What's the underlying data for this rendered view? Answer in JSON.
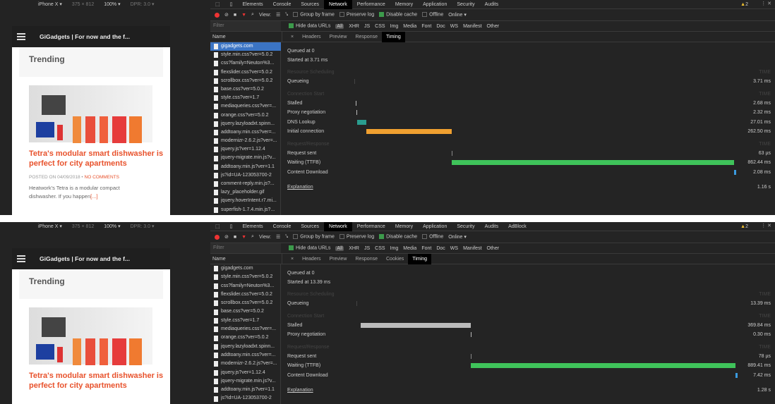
{
  "device_toolbar": {
    "device": "iPhone X ▾",
    "width": "375",
    "x": "×",
    "height": "812",
    "zoom": "100% ▾",
    "dpr": "DPR: 3.0 ▾"
  },
  "page": {
    "site_title": "GiGadgets | For now and the f...",
    "section": "Trending",
    "article_title": "Tetra's modular smart dishwasher is perfect for city apartments",
    "posted": "POSTED ON 04/09/2018",
    "comments": "NO COMMENTS",
    "excerpt": "Heatwork's Tetra is a modular compact dishwasher. If you happen",
    "more": "[...]"
  },
  "colors": {
    "accent": "#e8522c",
    "selected": "#3b74c4",
    "stalled": "#bbbbbb",
    "dns": "#2a9d8f",
    "initial_connection": "#f0a030",
    "ttfb": "#3fc35a",
    "download": "#3b9be0"
  },
  "panels": [
    {
      "tabs": [
        "Elements",
        "Console",
        "Sources",
        "Network",
        "Performance",
        "Memory",
        "Application",
        "Security",
        "Audits"
      ],
      "active_tab": "Network",
      "warnings": "2",
      "detail_tabs": [
        "Headers",
        "Preview",
        "Response",
        "Timing"
      ],
      "files": [
        "gigadgets.com",
        "style.min.css?ver=5.0.2",
        "css?family=Neuton%3...",
        "flexslider.css?ver=5.0.2",
        "scrollbox.css?ver=5.0.2",
        "base.css?ver=5.0.2",
        "style.css?ver=1.7",
        "mediaqueries.css?ver=...",
        "orange.css?ver=5.0.2",
        "jquery.lazyloadxt.spinn...",
        "addtoany.min.css?ver=...",
        "modernizr-2.6.2.js?ver=...",
        "jquery.js?ver=1.12.4",
        "jquery-migrate.min.js?v...",
        "addtoany.min.js?ver=1.1",
        "js?id=UA-123053700-2",
        "comment-reply.min.js?...",
        "lazy_placeholder.gif",
        "jquery.hoverIntent.r7.mi...",
        "superfish-1.7.4.min.js?..."
      ],
      "queued": "Queued at 0",
      "started": "Started at 3.71 ms",
      "sections": [
        {
          "title": "Resource Scheduling",
          "rows": [
            {
              "label": "Queueing",
              "value": "3.71 ms",
              "ms": 3.71,
              "kind": "queue"
            }
          ]
        },
        {
          "title": "Connection Start",
          "rows": [
            {
              "label": "Stalled",
              "value": "2.68 ms",
              "ms": 2.68,
              "kind": "stalled"
            },
            {
              "label": "Proxy negotiation",
              "value": "2.32 ms",
              "ms": 2.32,
              "kind": "stalled"
            },
            {
              "label": "DNS Lookup",
              "value": "27.01 ms",
              "ms": 27.01,
              "kind": "dns"
            },
            {
              "label": "Initial connection",
              "value": "262.50 ms",
              "ms": 262.5,
              "kind": "initial_connection"
            }
          ]
        },
        {
          "title": "Request/Response",
          "rows": [
            {
              "label": "Request sent",
              "value": "63 µs",
              "ms": 0.063,
              "kind": "sent"
            },
            {
              "label": "Waiting (TTFB)",
              "value": "862.44 ms",
              "ms": 862.44,
              "kind": "ttfb"
            },
            {
              "label": "Content Download",
              "value": "2.08 ms",
              "ms": 2.08,
              "kind": "download"
            }
          ]
        }
      ],
      "explanation": "Explanation",
      "total": "1.16 s"
    },
    {
      "tabs": [
        "Elements",
        "Console",
        "Sources",
        "Network",
        "Performance",
        "Memory",
        "Application",
        "Security",
        "Audits",
        "AdBlock"
      ],
      "active_tab": "Network",
      "warnings": "2",
      "detail_tabs": [
        "Headers",
        "Preview",
        "Response",
        "Cookies",
        "Timing"
      ],
      "files": [
        "gigadgets.com",
        "style.min.css?ver=5.0.2",
        "css?family=Neuton%3...",
        "flexslider.css?ver=5.0.2",
        "scrollbox.css?ver=5.0.2",
        "base.css?ver=5.0.2",
        "style.css?ver=1.7",
        "mediaqueries.css?ver=...",
        "orange.css?ver=5.0.2",
        "jquery.lazyloadxt.spinn...",
        "addtoany.min.css?ver=...",
        "modernizr-2.6.2.js?ver=...",
        "jquery.js?ver=1.12.4",
        "jquery-migrate.min.js?v...",
        "addtoany.min.js?ver=1.1",
        "js?id=UA-123053700-2"
      ],
      "queued": "Queued at 0",
      "started": "Started at 13.39 ms",
      "sections": [
        {
          "title": "Resource Scheduling",
          "rows": [
            {
              "label": "Queueing",
              "value": "13.39 ms",
              "ms": 13.39,
              "kind": "queue"
            }
          ]
        },
        {
          "title": "Connection Start",
          "rows": [
            {
              "label": "Stalled",
              "value": "369.84 ms",
              "ms": 369.84,
              "kind": "stalled"
            },
            {
              "label": "Proxy negotiation",
              "value": "0.30 ms",
              "ms": 0.3,
              "kind": "stalled"
            }
          ]
        },
        {
          "title": "Request/Response",
          "rows": [
            {
              "label": "Request sent",
              "value": "78 µs",
              "ms": 0.078,
              "kind": "sent"
            },
            {
              "label": "Waiting (TTFB)",
              "value": "889.41 ms",
              "ms": 889.41,
              "kind": "ttfb"
            },
            {
              "label": "Content Download",
              "value": "7.42 ms",
              "ms": 7.42,
              "kind": "download"
            }
          ]
        }
      ],
      "explanation": "Explanation",
      "total": "1.28 s"
    }
  ],
  "toolbar": {
    "view": "View:",
    "group": "Group by frame",
    "preserve": "Preserve log",
    "cache": "Disable cache",
    "offline": "Offline",
    "online": "Online",
    "filter_placeholder": "Filter",
    "hide_urls": "Hide data URLs",
    "all": "All",
    "types": [
      "XHR",
      "JS",
      "CSS",
      "Img",
      "Media",
      "Font",
      "Doc",
      "WS",
      "Manifest",
      "Other"
    ],
    "name_col": "Name",
    "section_time": "TIME"
  }
}
